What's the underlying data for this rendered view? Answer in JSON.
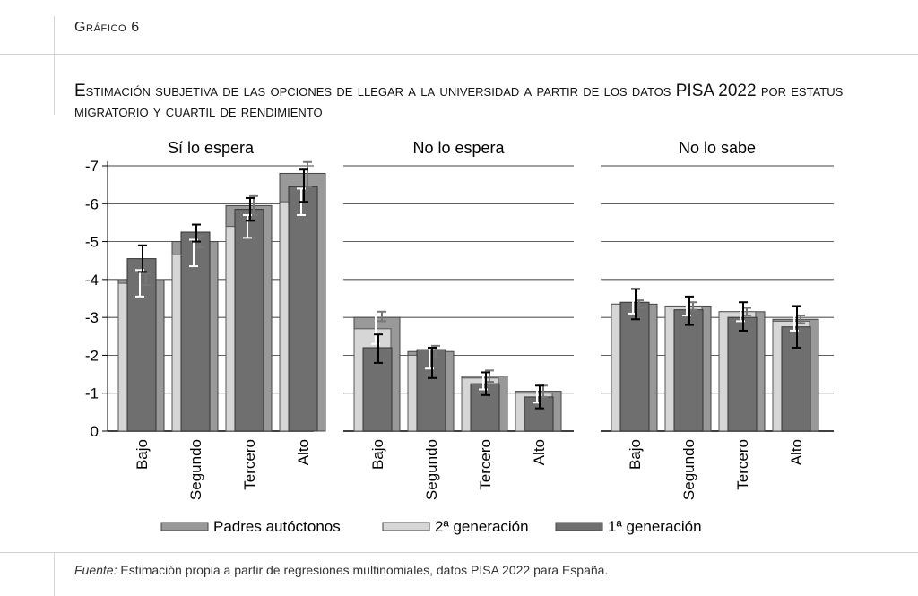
{
  "header": {
    "figure_label": "Gráfico 6",
    "title": "Estimación subjetiva de las opciones de llegar a la universidad a partir de los datos PISA 2022 por estatus migratorio y cuartil de rendimiento"
  },
  "footer": {
    "source_lead": "Fuente:",
    "source_text": "Estimación propia a partir de regresiones multinomiales, datos PISA 2022 para España."
  },
  "chart_data": {
    "type": "bar",
    "panels": [
      {
        "title": "Sí lo espera",
        "categories": [
          "Bajo",
          "Segundo",
          "Tercero",
          "Alto"
        ],
        "series": [
          {
            "name": "Padres autóctonos",
            "values": [
              -4.0,
              -5.0,
              -5.95,
              -6.8
            ],
            "err_low": [
              -3.85,
              -4.85,
              -5.7,
              -6.45
            ],
            "err_high": [
              -4.15,
              -5.15,
              -6.2,
              -7.1
            ]
          },
          {
            "name": "2ª generación",
            "values": [
              -3.9,
              -4.65,
              -5.4,
              -6.05
            ],
            "err_low": [
              -3.55,
              -4.35,
              -5.1,
              -5.7
            ],
            "err_high": [
              -4.25,
              -5.05,
              -5.7,
              -6.4
            ]
          },
          {
            "name": "1ª generación",
            "values": [
              -4.55,
              -5.25,
              -5.85,
              -6.45
            ],
            "err_low": [
              -4.2,
              -5.0,
              -5.55,
              -6.05
            ],
            "err_high": [
              -4.9,
              -5.45,
              -6.15,
              -6.9
            ]
          }
        ]
      },
      {
        "title": "No lo espera",
        "categories": [
          "Bajo",
          "Segundo",
          "Tercero",
          "Alto"
        ],
        "series": [
          {
            "name": "Padres autóctonos",
            "values": [
              -3.0,
              -2.1,
              -1.45,
              -1.05
            ],
            "err_low": [
              -2.9,
              -1.95,
              -1.3,
              -0.9
            ],
            "err_high": [
              -3.15,
              -2.25,
              -1.6,
              -1.2
            ]
          },
          {
            "name": "2ª generación",
            "values": [
              -2.7,
              -2.0,
              -1.4,
              -1.0
            ],
            "err_low": [
              -2.3,
              -1.65,
              -1.1,
              -0.75
            ],
            "err_high": [
              -3.1,
              -2.35,
              -1.7,
              -1.25
            ]
          },
          {
            "name": "1ª generación",
            "values": [
              -2.2,
              -2.15,
              -1.25,
              -0.9
            ],
            "err_low": [
              -1.8,
              -1.4,
              -0.95,
              -0.6
            ],
            "err_high": [
              -2.55,
              -2.2,
              -1.55,
              -1.2
            ]
          }
        ]
      },
      {
        "title": "No lo sabe",
        "categories": [
          "Bajo",
          "Segundo",
          "Tercero",
          "Alto"
        ],
        "series": [
          {
            "name": "Padres autóctonos",
            "values": [
              -3.35,
              -3.3,
              -3.15,
              -2.95
            ],
            "err_low": [
              -3.25,
              -3.2,
              -3.05,
              -2.85
            ],
            "err_high": [
              -3.45,
              -3.4,
              -3.25,
              -3.05
            ]
          },
          {
            "name": "2ª generación",
            "values": [
              -3.35,
              -3.3,
              -3.15,
              -2.9
            ],
            "err_low": [
              -3.1,
              -3.05,
              -2.9,
              -2.65
            ],
            "err_high": [
              -3.6,
              -3.55,
              -3.4,
              -3.15
            ]
          },
          {
            "name": "1ª generación",
            "values": [
              -3.4,
              -3.2,
              -3.0,
              -2.75
            ],
            "err_low": [
              -2.95,
              -2.8,
              -2.65,
              -2.2
            ],
            "err_high": [
              -3.75,
              -3.55,
              -3.4,
              -3.3
            ]
          }
        ]
      }
    ],
    "y_axis": {
      "ylim": [
        0,
        -7
      ],
      "ticks": [
        0,
        -1,
        -2,
        -3,
        -4,
        -5,
        -6,
        -7
      ],
      "reversed": true
    },
    "grid": true,
    "legend": {
      "position": "bottom",
      "entries": [
        "Padres autóctonos",
        "2ª generación",
        "1ª generación"
      ]
    },
    "colors": {
      "Padres autóctonos": "#999999",
      "2ª generación": "#d6d6d6",
      "1ª generación": "#6f6f6f"
    }
  }
}
